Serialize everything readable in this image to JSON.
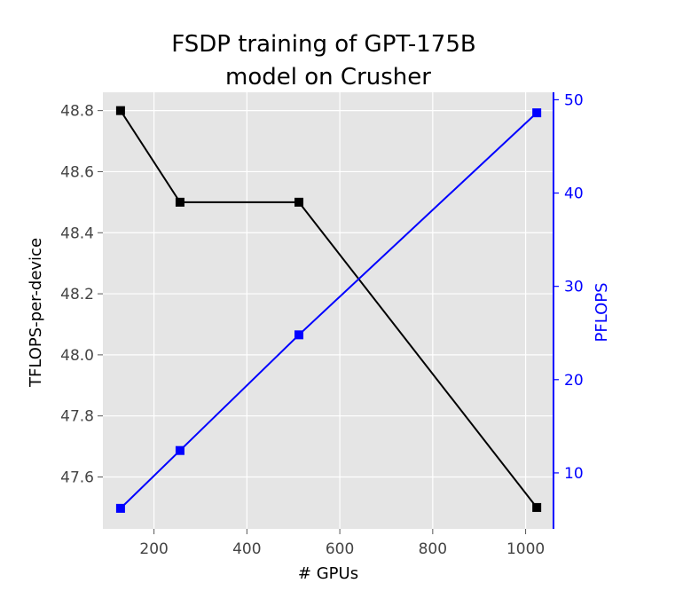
{
  "chart_data": {
    "type": "line",
    "title_lines": [
      "FSDP training of GPT-175B",
      "model on Crusher"
    ],
    "xlabel": "# GPUs",
    "ylabel_left": "TFLOPS-per-device",
    "ylabel_right": "PFLOPS",
    "x": [
      128,
      256,
      512,
      1024
    ],
    "xlim": [
      90,
      1060
    ],
    "xticks": [
      200,
      400,
      600,
      800,
      1000
    ],
    "series": [
      {
        "axis": "left",
        "color": "#000000",
        "marker": "square",
        "values": [
          48.8,
          48.5,
          48.5,
          47.5
        ]
      },
      {
        "axis": "right",
        "color": "#0000ff",
        "marker": "square",
        "values": [
          6.2,
          12.4,
          24.8,
          48.6
        ]
      }
    ],
    "ylim_left": [
      47.43,
      48.86
    ],
    "yticks_left": [
      47.6,
      47.8,
      48.0,
      48.2,
      48.4,
      48.6,
      48.8
    ],
    "ylim_right": [
      4.0,
      50.8
    ],
    "yticks_right": [
      10,
      20,
      30,
      40,
      50
    ],
    "grid": true,
    "background": "#e5e5e5",
    "right_axis_color": "#0000ff"
  }
}
